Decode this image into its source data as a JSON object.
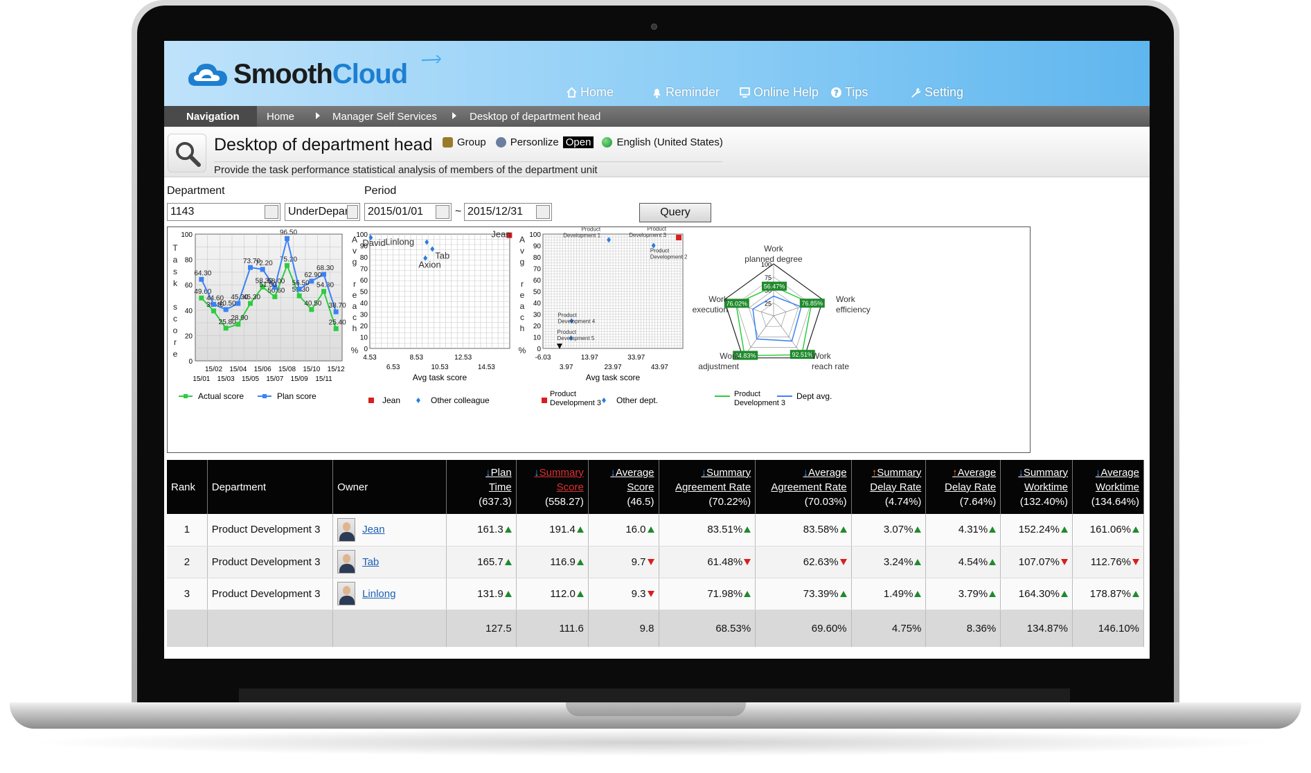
{
  "app": {
    "brand_smooth": "Smooth",
    "brand_cloud": "Cloud"
  },
  "topnav": {
    "home": "Home",
    "reminder": "Reminder",
    "online_help": "Online Help",
    "tips": "Tips",
    "setting": "Setting"
  },
  "breadcrumb": {
    "navigation": "Navigation",
    "home": "Home",
    "manager": "Manager Self Services",
    "current": "Desktop of department head"
  },
  "page": {
    "title": "Desktop of department head",
    "group": "Group",
    "personalize": "Personlize",
    "open": "Open",
    "language": "English (United States)",
    "subtitle": "Provide the task performance statistical analysis of members of the department unit"
  },
  "filters": {
    "department_label": "Department",
    "department_value": "1143",
    "scope_value": "UnderDepartn",
    "period_label": "Period",
    "start": "2015/01/01",
    "sep": "~",
    "end": "2015/12/31",
    "query": "Query"
  },
  "colors": {
    "actual": "#2ecc40",
    "plan": "#3b82f6",
    "jean": "#d81e1e",
    "other": "#2a7de1",
    "up": "#1f8a2c",
    "down": "#d81e1e"
  },
  "chart_data": [
    {
      "type": "line",
      "ylabel": "Task score",
      "ylim": [
        0,
        100
      ],
      "yticks": [
        0,
        20,
        40,
        60,
        80,
        100
      ],
      "x_top": [
        "15/02",
        "15/04",
        "15/06",
        "15/08",
        "15/10",
        "15/12"
      ],
      "x_bottom": [
        "15/01",
        "15/03",
        "15/05",
        "15/07",
        "15/09",
        "15/11"
      ],
      "categories": [
        "15/01",
        "15/02",
        "15/03",
        "15/04",
        "15/05",
        "15/06",
        "15/07",
        "15/08",
        "15/09",
        "15/10",
        "15/11",
        "15/12"
      ],
      "series": [
        {
          "name": "Actual score",
          "values": [
            49.6,
            39.4,
            25.8,
            28.9,
            45.3,
            58.3,
            50.6,
            75.2,
            51.3,
            40.5,
            54.8,
            25.4
          ]
        },
        {
          "name": "Plan score",
          "values": [
            64.3,
            44.6,
            40.5,
            45.3,
            73.7,
            72.2,
            58.0,
            96.5,
            56.5,
            62.9,
            68.3,
            38.7
          ]
        }
      ],
      "extra_labels": [
        "51.50"
      ]
    },
    {
      "type": "scatter",
      "ylabel": "Avg reach %",
      "xlabel": "Avg task score",
      "ylim": [
        0,
        100
      ],
      "yticks": [
        0,
        10,
        20,
        30,
        40,
        50,
        60,
        70,
        80,
        90,
        100
      ],
      "x_top": [
        "4.53",
        "8.53",
        "12.53"
      ],
      "x_bottom": [
        "6.53",
        "10.53",
        "14.53"
      ],
      "xlim": [
        4.53,
        14.53
      ],
      "series": [
        {
          "name": "Jean",
          "points": [
            {
              "label": "Jean",
              "x": 14.5,
              "y": 99
            }
          ]
        },
        {
          "name": "Other colleague",
          "points": [
            {
              "label": "David",
              "x": 4.6,
              "y": 97
            },
            {
              "label": "Linlong",
              "x": 8.6,
              "y": 93
            },
            {
              "label": "Tab",
              "x": 9.0,
              "y": 87
            },
            {
              "label": "Axion",
              "x": 8.5,
              "y": 79
            }
          ]
        }
      ]
    },
    {
      "type": "scatter",
      "ylabel": "Avg reach %",
      "xlabel": "Avg task score",
      "ylim": [
        0,
        100
      ],
      "yticks": [
        0,
        10,
        20,
        30,
        40,
        50,
        60,
        70,
        80,
        90,
        100
      ],
      "x_top": [
        "-6.03",
        "13.97",
        "33.97"
      ],
      "x_bottom": [
        "3.97",
        "23.97",
        "43.97"
      ],
      "xlim": [
        -6.03,
        43.97
      ],
      "series": [
        {
          "name": "Product Development 3",
          "points": [
            {
              "label": "Product Development 3",
              "x": 42.5,
              "y": 97
            }
          ]
        },
        {
          "name": "Other dept.",
          "points": [
            {
              "label": "Product Development 1",
              "x": 17.5,
              "y": 95
            },
            {
              "label": "Product Development 2",
              "x": 33.5,
              "y": 90
            },
            {
              "label": "Product Development 4",
              "x": 4.2,
              "y": 24
            },
            {
              "label": "Product Development 5",
              "x": 4.0,
              "y": 9
            }
          ]
        }
      ]
    },
    {
      "type": "radar",
      "axes": [
        "Work planned degree",
        "Work efficiency",
        "Work reach rate",
        "Work adjustment",
        "Work execution"
      ],
      "rings": [
        "25",
        "50",
        "75",
        "100"
      ],
      "series": [
        {
          "name": "Product Development 3",
          "values": [
            56.47,
            76.85,
            92.51,
            94.83,
            76.02
          ]
        },
        {
          "name": "Dept avg.",
          "values": [
            38,
            56,
            60,
            55,
            42
          ]
        }
      ],
      "value_labels": [
        "56.47%",
        "76.85%",
        "92.51%",
        "94.83%",
        "76.02%"
      ]
    }
  ],
  "chart_text": {
    "c1_ylabel": "Task score",
    "c1_legend_actual": "Actual score",
    "c1_legend_plan": "Plan score",
    "c2_ylabel": "Avg reach %",
    "c2_xlabel": "Avg task score",
    "c2_legend_jean": "Jean",
    "c2_legend_other": "Other colleague",
    "c3_ylabel": "Avg reach %",
    "c3_xlabel": "Avg task score",
    "c3_legend_pd3": "Product Development 3",
    "c3_legend_other": "Other dept.",
    "c4_legend_pd3": "Product Development 3",
    "c4_legend_avg": "Dept avg.",
    "c4_axis_planned": "Work planned degree",
    "c4_axis_efficiency": "Work efficiency",
    "c4_axis_reach": "Work reach rate",
    "c4_axis_adjustment": "Work adjustment",
    "c4_axis_execution": "Work execution"
  },
  "table": {
    "headers": [
      {
        "l1": "Rank"
      },
      {
        "l1": "Department"
      },
      {
        "l1": "Owner"
      },
      {
        "l1": "Plan",
        "l2": "Time",
        "l3": "(637.3)",
        "sort": "down"
      },
      {
        "l1": "Summary",
        "l2": "Score",
        "l3": "(558.27)",
        "sort": "down"
      },
      {
        "l1": "Average",
        "l2": "Score",
        "l3": "(46.5)",
        "sort": "down"
      },
      {
        "l1": "Summary",
        "l2": "Agreement Rate",
        "l3": "(70.22%)",
        "sort": "down"
      },
      {
        "l1": "Average",
        "l2": "Agreement Rate",
        "l3": "(70.03%)",
        "sort": "down"
      },
      {
        "l1": "Summary",
        "l2": "Delay Rate",
        "l3": "(4.74%)",
        "sort": "up"
      },
      {
        "l1": "Average",
        "l2": "Delay Rate",
        "l3": "(7.64%)",
        "sort": "up"
      },
      {
        "l1": "Summary",
        "l2": "Worktime",
        "l3": "(132.40%)",
        "sort": "down"
      },
      {
        "l1": "Average",
        "l2": "Worktime",
        "l3": "(134.64%)",
        "sort": "down"
      }
    ],
    "rows": [
      {
        "rank": "1",
        "dept": "Product Development 3",
        "owner": "Jean",
        "cells": [
          [
            "161.3",
            "up"
          ],
          [
            "191.4",
            "up"
          ],
          [
            "16.0",
            "up"
          ],
          [
            "83.51%",
            "up"
          ],
          [
            "83.58%",
            "up"
          ],
          [
            "3.07%",
            "up"
          ],
          [
            "4.31%",
            "up"
          ],
          [
            "152.24%",
            "up"
          ],
          [
            "161.06%",
            "up"
          ]
        ]
      },
      {
        "rank": "2",
        "dept": "Product Development 3",
        "owner": "Tab",
        "cells": [
          [
            "165.7",
            "up"
          ],
          [
            "116.9",
            "up"
          ],
          [
            "9.7",
            "down"
          ],
          [
            "61.48%",
            "down"
          ],
          [
            "62.63%",
            "down"
          ],
          [
            "3.24%",
            "up"
          ],
          [
            "4.54%",
            "up"
          ],
          [
            "107.07%",
            "down"
          ],
          [
            "112.76%",
            "down"
          ]
        ]
      },
      {
        "rank": "3",
        "dept": "Product Development 3",
        "owner": "Linlong",
        "cells": [
          [
            "131.9",
            "up"
          ],
          [
            "112.0",
            "up"
          ],
          [
            "9.3",
            "down"
          ],
          [
            "71.98%",
            "up"
          ],
          [
            "73.39%",
            "up"
          ],
          [
            "1.49%",
            "up"
          ],
          [
            "3.79%",
            "up"
          ],
          [
            "164.30%",
            "up"
          ],
          [
            "178.87%",
            "up"
          ]
        ]
      }
    ],
    "summary": [
      "127.5",
      "111.6",
      "9.8",
      "68.53%",
      "69.60%",
      "4.75%",
      "8.36%",
      "134.87%",
      "146.10%"
    ]
  }
}
